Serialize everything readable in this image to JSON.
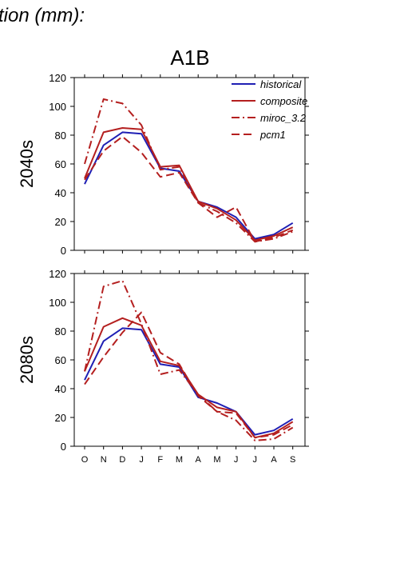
{
  "figure": {
    "partial_title": "tion (mm):",
    "panel_title": "A1B"
  },
  "colors": {
    "historical": "#1f1fb4",
    "scenario": "#b41f1f"
  },
  "legend": [
    {
      "label": "historical",
      "dash": "solid",
      "color_key": "historical"
    },
    {
      "label": "composite",
      "dash": "solid",
      "color_key": "scenario"
    },
    {
      "label": "miroc_3.2",
      "dash": "dashdot",
      "color_key": "scenario"
    },
    {
      "label": "pcm1",
      "dash": "dashed",
      "color_key": "scenario"
    }
  ],
  "chart_data": [
    {
      "type": "line",
      "title": "A1B",
      "row_label": "2040s",
      "categories": [
        "O",
        "N",
        "D",
        "J",
        "F",
        "M",
        "A",
        "M",
        "J",
        "J",
        "A",
        "S"
      ],
      "ylim": [
        0,
        120
      ],
      "yticks": [
        0,
        20,
        40,
        60,
        80,
        100,
        120
      ],
      "legend_position": "top-right",
      "series": [
        {
          "name": "historical",
          "values": [
            46,
            73,
            82,
            81,
            57,
            55,
            34,
            30,
            23,
            8,
            11,
            19
          ]
        },
        {
          "name": "composite",
          "values": [
            50,
            82,
            85,
            84,
            58,
            59,
            34,
            29,
            21,
            7,
            10,
            16
          ]
        },
        {
          "name": "miroc_3.2",
          "values": [
            60,
            105,
            102,
            87,
            56,
            58,
            33,
            27,
            19,
            6,
            8,
            13
          ]
        },
        {
          "name": "pcm1",
          "values": [
            49,
            69,
            79,
            68,
            51,
            54,
            33,
            23,
            30,
            6,
            9,
            14
          ]
        }
      ]
    },
    {
      "type": "line",
      "row_label": "2080s",
      "categories": [
        "O",
        "N",
        "D",
        "J",
        "F",
        "M",
        "A",
        "M",
        "J",
        "J",
        "A",
        "S"
      ],
      "ylim": [
        0,
        120
      ],
      "yticks": [
        0,
        20,
        40,
        60,
        80,
        100,
        120
      ],
      "series": [
        {
          "name": "historical",
          "values": [
            46,
            73,
            82,
            81,
            57,
            55,
            34,
            30,
            24,
            8,
            11,
            19
          ]
        },
        {
          "name": "composite",
          "values": [
            52,
            83,
            89,
            84,
            59,
            56,
            36,
            27,
            24,
            6,
            9,
            17
          ]
        },
        {
          "name": "miroc_3.2",
          "values": [
            52,
            111,
            115,
            85,
            50,
            53,
            36,
            24,
            18,
            4,
            5,
            13
          ]
        },
        {
          "name": "pcm1",
          "values": [
            43,
            62,
            79,
            93,
            65,
            57,
            35,
            24,
            23,
            6,
            8,
            15
          ]
        }
      ]
    }
  ]
}
